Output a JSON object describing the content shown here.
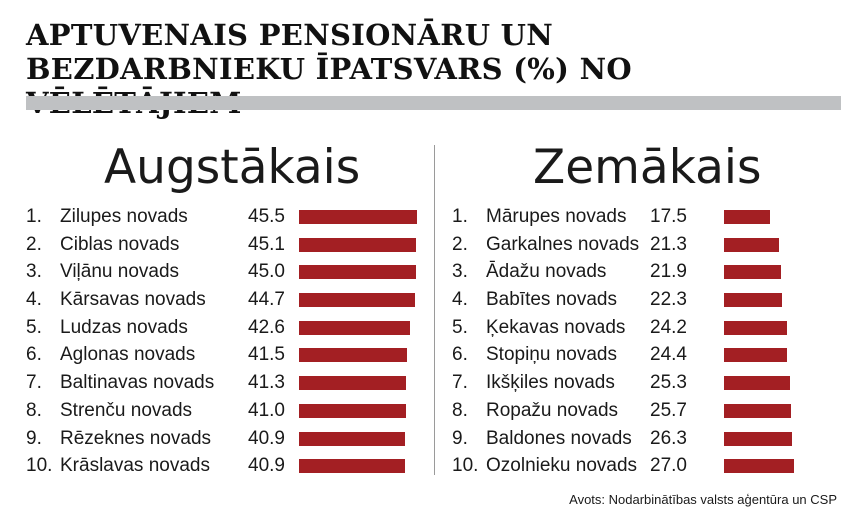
{
  "title": "APTUVENAIS PENSIONĀRU UN BEZDARBNIEKU ĪPATSVARS (%) NO VĒLĒTĀJIEM",
  "source": "Avots:  Nodarbinātības valsts aģentūra un CSP",
  "colors": {
    "bar": "#a31f23",
    "title_bar": "#bfc1c3",
    "divider": "#9a9a9a"
  },
  "chart_data": [
    {
      "type": "bar",
      "title": "Augstākais",
      "ranks": [
        "1.",
        "2.",
        "3.",
        "4.",
        "5.",
        "6.",
        "7.",
        "8.",
        "9.",
        "10."
      ],
      "categories": [
        "Zilupes novads",
        "Ciblas novads",
        "Viļānu novads",
        "Kārsavas novads",
        "Ludzas novads",
        "Aglonas novads",
        "Baltinavas novads",
        "Strenču novads",
        "Rēzeknes novads",
        "Krāslavas novads"
      ],
      "values": [
        45.5,
        45.1,
        45.0,
        44.7,
        42.6,
        41.5,
        41.3,
        41.0,
        40.9,
        40.9
      ],
      "value_labels": [
        "45.5",
        "45.1",
        "45.0",
        "44.7",
        "42.6",
        "41.5",
        "41.3",
        "41.0",
        "40.9",
        "40.9"
      ]
    },
    {
      "type": "bar",
      "title": "Zemākais",
      "ranks": [
        "1.",
        "2.",
        "3.",
        "4.",
        "5.",
        "6.",
        "7.",
        "8.",
        "9.",
        "10."
      ],
      "categories": [
        "Mārupes novads",
        "Garkalnes novads",
        "Ādažu novads",
        "Babītes novads",
        "Ķekavas novads",
        "Stopiņu novads",
        "Ikšķiles novads",
        "Ropažu novads",
        "Baldones novads",
        "Ozolnieku novads"
      ],
      "values": [
        17.5,
        21.3,
        21.9,
        22.3,
        24.2,
        24.4,
        25.3,
        25.7,
        26.3,
        27.0
      ],
      "value_labels": [
        "17.5",
        "21.3",
        "21.9",
        "22.3",
        "24.2",
        "24.4",
        "25.3",
        "25.7",
        "26.3",
        "27.0"
      ]
    }
  ]
}
